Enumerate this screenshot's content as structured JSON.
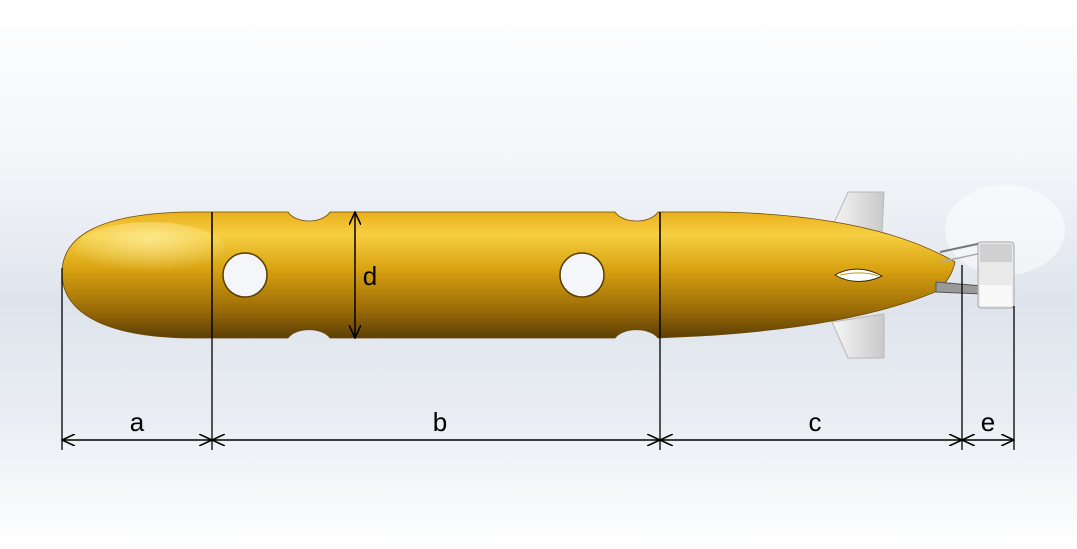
{
  "diagram": {
    "labels": {
      "a": "a",
      "b": "b",
      "c": "c",
      "d": "d",
      "e": "e"
    },
    "colors": {
      "hull_light": "#f5cd3a",
      "hull_mid": "#d9a410",
      "hull_dark": "#6b4a06",
      "fin": "#e9e9e9",
      "dimension_line": "#000000"
    }
  }
}
